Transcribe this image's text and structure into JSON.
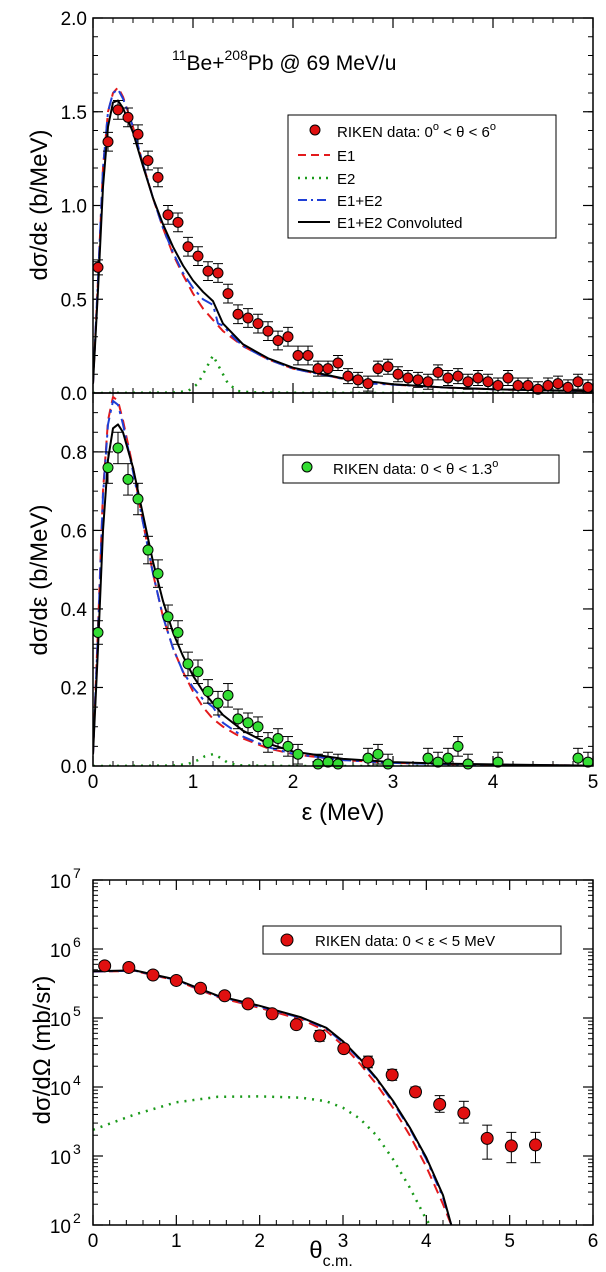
{
  "colors": {
    "e1": "#e31a1c",
    "e2": "#1a9a1a",
    "e1e2": "#1f3fd6",
    "conv": "#000000",
    "riken_red": "#e01010",
    "riken_green": "#33dd33"
  },
  "chart_data": [
    {
      "type": "scatter",
      "title": "¹¹Be+²⁰⁸Pb @ 69 MeV/u",
      "title_parts": {
        "m1": "11",
        "a": "Be+",
        "m2": "208",
        "b": "Pb @ 69 MeV/u"
      },
      "ylabel": "dσ/dε (b/MeV)",
      "xlim": [
        0,
        5
      ],
      "ylim": [
        0,
        2.0
      ],
      "x_ticks": [
        "0",
        "1",
        "2",
        "3",
        "4",
        "5"
      ],
      "y_ticks": [
        "0.0",
        "0.5",
        "1.0",
        "1.5",
        "2.0"
      ],
      "legend": {
        "data": "RIKEN data: 0° < θ < 6°",
        "data_parts": {
          "a": "RIKEN data: 0",
          "sup1": "o",
          "b": " < θ < 6",
          "sup2": "o"
        },
        "e1": "E1",
        "e2": "E2",
        "e1e2": "E1+E2",
        "conv": "E1+E2 Convoluted"
      },
      "series": [
        {
          "name": "RIKEN data: 0° < θ < 6°",
          "kind": "points",
          "x": [
            0.05,
            0.15,
            0.25,
            0.35,
            0.45,
            0.55,
            0.65,
            0.75,
            0.85,
            0.95,
            1.05,
            1.15,
            1.25,
            1.35,
            1.45,
            1.55,
            1.65,
            1.75,
            1.85,
            1.95,
            2.05,
            2.15,
            2.25,
            2.35,
            2.45,
            2.55,
            2.65,
            2.75,
            2.85,
            2.95,
            3.05,
            3.15,
            3.25,
            3.35,
            3.45,
            3.55,
            3.65,
            3.75,
            3.85,
            3.95,
            4.05,
            4.15,
            4.25,
            4.35,
            4.45,
            4.55,
            4.65,
            4.75,
            4.85,
            4.95
          ],
          "y": [
            0.67,
            1.34,
            1.51,
            1.47,
            1.38,
            1.24,
            1.15,
            0.95,
            0.91,
            0.78,
            0.73,
            0.65,
            0.64,
            0.53,
            0.42,
            0.4,
            0.37,
            0.33,
            0.28,
            0.3,
            0.2,
            0.2,
            0.13,
            0.13,
            0.16,
            0.09,
            0.07,
            0.05,
            0.13,
            0.14,
            0.1,
            0.08,
            0.07,
            0.06,
            0.11,
            0.08,
            0.09,
            0.06,
            0.08,
            0.06,
            0.04,
            0.08,
            0.04,
            0.04,
            0.02,
            0.04,
            0.05,
            0.03,
            0.06,
            0.03
          ],
          "err": [
            0.04,
            0.05,
            0.05,
            0.05,
            0.05,
            0.05,
            0.05,
            0.05,
            0.05,
            0.05,
            0.05,
            0.05,
            0.05,
            0.05,
            0.05,
            0.05,
            0.05,
            0.05,
            0.05,
            0.05,
            0.05,
            0.05,
            0.04,
            0.04,
            0.04,
            0.04,
            0.04,
            0.04,
            0.04,
            0.04,
            0.04,
            0.04,
            0.04,
            0.04,
            0.04,
            0.04,
            0.04,
            0.04,
            0.04,
            0.04,
            0.04,
            0.04,
            0.04,
            0.04,
            0.04,
            0.04,
            0.04,
            0.04,
            0.04,
            0.04
          ]
        },
        {
          "name": "E1",
          "kind": "line",
          "x": [
            0,
            0.05,
            0.1,
            0.15,
            0.2,
            0.25,
            0.3,
            0.4,
            0.5,
            0.6,
            0.7,
            0.8,
            0.9,
            1.0,
            1.1,
            1.2,
            1.3,
            1.5,
            1.75,
            2.0,
            2.5,
            3.0,
            3.5,
            4.0,
            5.0
          ],
          "y": [
            0.05,
            0.6,
            1.2,
            1.5,
            1.6,
            1.63,
            1.58,
            1.42,
            1.22,
            1.04,
            0.88,
            0.74,
            0.63,
            0.53,
            0.45,
            0.39,
            0.33,
            0.25,
            0.18,
            0.13,
            0.075,
            0.045,
            0.03,
            0.02,
            0.01
          ]
        },
        {
          "name": "E2",
          "kind": "line",
          "x": [
            0,
            0.8,
            0.95,
            1.05,
            1.12,
            1.2,
            1.28,
            1.35,
            1.45,
            1.6,
            2.0,
            3.0,
            5.0
          ],
          "y": [
            0,
            0.002,
            0.01,
            0.05,
            0.12,
            0.2,
            0.12,
            0.05,
            0.01,
            0.003,
            0.001,
            0,
            0
          ]
        },
        {
          "name": "E1+E2",
          "kind": "line",
          "x": [
            0,
            0.05,
            0.1,
            0.15,
            0.2,
            0.25,
            0.3,
            0.4,
            0.5,
            0.6,
            0.7,
            0.8,
            0.9,
            1.0,
            1.1,
            1.2,
            1.25,
            1.3,
            1.4,
            1.5,
            1.75,
            2.0,
            2.5,
            2.65,
            2.72,
            2.8,
            3.0,
            3.5,
            4.0,
            5.0
          ],
          "y": [
            0.05,
            0.6,
            1.2,
            1.5,
            1.6,
            1.62,
            1.57,
            1.42,
            1.22,
            1.04,
            0.88,
            0.75,
            0.64,
            0.56,
            0.5,
            0.47,
            0.37,
            0.36,
            0.3,
            0.25,
            0.18,
            0.13,
            0.075,
            0.09,
            0.04,
            0.05,
            0.045,
            0.03,
            0.02,
            0.01
          ]
        },
        {
          "name": "E1+E2 Convoluted",
          "kind": "line",
          "x": [
            0,
            0.05,
            0.1,
            0.15,
            0.2,
            0.25,
            0.3,
            0.4,
            0.5,
            0.6,
            0.7,
            0.8,
            0.9,
            1.0,
            1.1,
            1.2,
            1.3,
            1.5,
            1.75,
            2.0,
            2.5,
            3.0,
            3.5,
            4.0,
            5.0
          ],
          "y": [
            0.05,
            0.55,
            1.1,
            1.42,
            1.55,
            1.56,
            1.52,
            1.39,
            1.21,
            1.04,
            0.9,
            0.78,
            0.68,
            0.6,
            0.54,
            0.49,
            0.37,
            0.26,
            0.185,
            0.135,
            0.078,
            0.047,
            0.03,
            0.02,
            0.01
          ]
        }
      ]
    },
    {
      "type": "scatter",
      "ylabel": "dσ/dε (b/MeV)",
      "xlabel": "ε (MeV)",
      "xlim": [
        0,
        5
      ],
      "ylim": [
        0,
        0.95
      ],
      "x_ticks": [
        "0",
        "1",
        "2",
        "3",
        "4",
        "5"
      ],
      "y_ticks": [
        "0.0",
        "0.2",
        "0.4",
        "0.6",
        "0.8"
      ],
      "legend": {
        "data": "RIKEN data: 0 < θ < 1.3°",
        "data_parts": {
          "a": "RIKEN data: 0 < θ < 1.3",
          "sup1": "o"
        }
      },
      "series": [
        {
          "name": "RIKEN data: 0 < θ < 1.3°",
          "kind": "points",
          "x": [
            0.05,
            0.15,
            0.25,
            0.35,
            0.45,
            0.55,
            0.65,
            0.75,
            0.85,
            0.95,
            1.05,
            1.15,
            1.25,
            1.35,
            1.45,
            1.55,
            1.65,
            1.75,
            1.85,
            1.95,
            2.05,
            2.25,
            2.35,
            2.45,
            2.75,
            2.85,
            2.95,
            3.35,
            3.45,
            3.55,
            3.65,
            3.75,
            4.05,
            4.85,
            4.95
          ],
          "y": [
            0.34,
            0.76,
            0.81,
            0.73,
            0.68,
            0.55,
            0.49,
            0.38,
            0.34,
            0.26,
            0.24,
            0.19,
            0.16,
            0.18,
            0.12,
            0.11,
            0.1,
            0.06,
            0.07,
            0.05,
            0.03,
            0.005,
            0.01,
            0.005,
            0.02,
            0.03,
            0.005,
            0.02,
            0.01,
            0.02,
            0.05,
            0.005,
            0.01,
            0.02,
            0.01
          ],
          "err": [
            0.03,
            0.04,
            0.04,
            0.04,
            0.04,
            0.035,
            0.035,
            0.03,
            0.03,
            0.03,
            0.03,
            0.03,
            0.03,
            0.03,
            0.025,
            0.025,
            0.025,
            0.025,
            0.025,
            0.025,
            0.025,
            0.025,
            0.025,
            0.025,
            0.025,
            0.025,
            0.025,
            0.025,
            0.025,
            0.025,
            0.025,
            0.025,
            0.025,
            0.025,
            0.025
          ]
        },
        {
          "name": "E1",
          "kind": "line",
          "x": [
            0,
            0.05,
            0.1,
            0.15,
            0.2,
            0.25,
            0.3,
            0.4,
            0.5,
            0.6,
            0.7,
            0.8,
            0.9,
            1.0,
            1.1,
            1.2,
            1.3,
            1.5,
            1.75,
            2.0,
            2.5,
            3.0,
            3.5,
            4.0,
            5.0
          ],
          "y": [
            0.03,
            0.35,
            0.7,
            0.88,
            0.94,
            0.93,
            0.88,
            0.76,
            0.62,
            0.49,
            0.38,
            0.3,
            0.24,
            0.19,
            0.15,
            0.12,
            0.1,
            0.07,
            0.045,
            0.03,
            0.015,
            0.008,
            0.005,
            0.003,
            0.001
          ]
        },
        {
          "name": "E2",
          "kind": "line",
          "x": [
            0,
            0.8,
            0.95,
            1.05,
            1.12,
            1.2,
            1.28,
            1.35,
            1.45,
            1.6,
            2.0,
            3.0,
            5.0
          ],
          "y": [
            0,
            0.001,
            0.005,
            0.015,
            0.025,
            0.03,
            0.02,
            0.008,
            0.002,
            0.001,
            0,
            0,
            0
          ]
        },
        {
          "name": "E1+E2",
          "kind": "line",
          "x": [
            0,
            0.05,
            0.1,
            0.15,
            0.2,
            0.25,
            0.3,
            0.4,
            0.5,
            0.6,
            0.7,
            0.8,
            0.9,
            1.0,
            1.1,
            1.2,
            1.3,
            1.5,
            1.75,
            2.0,
            2.5,
            3.0,
            3.5,
            4.0,
            5.0
          ],
          "y": [
            0.03,
            0.34,
            0.69,
            0.87,
            0.93,
            0.92,
            0.87,
            0.75,
            0.62,
            0.49,
            0.38,
            0.3,
            0.24,
            0.2,
            0.17,
            0.15,
            0.11,
            0.075,
            0.048,
            0.031,
            0.015,
            0.008,
            0.005,
            0.003,
            0.001
          ]
        },
        {
          "name": "E1+E2 Convoluted",
          "kind": "line",
          "x": [
            0,
            0.05,
            0.1,
            0.15,
            0.2,
            0.25,
            0.3,
            0.4,
            0.5,
            0.6,
            0.7,
            0.8,
            0.9,
            1.0,
            1.1,
            1.2,
            1.3,
            1.5,
            1.75,
            2.0,
            2.5,
            3.0,
            3.5,
            4.0,
            5.0
          ],
          "y": [
            0.03,
            0.3,
            0.6,
            0.78,
            0.86,
            0.87,
            0.85,
            0.76,
            0.64,
            0.52,
            0.42,
            0.34,
            0.28,
            0.23,
            0.19,
            0.16,
            0.13,
            0.09,
            0.057,
            0.037,
            0.018,
            0.01,
            0.006,
            0.004,
            0.001
          ]
        }
      ]
    },
    {
      "type": "scatter",
      "ylabel": "dσ/dΩ (mb/sr)",
      "xlabel": "θc.m.",
      "xlabel_parts": {
        "main": "θ",
        "sub": "c.m."
      },
      "xlim": [
        0,
        6
      ],
      "ylim_log10": [
        2,
        7
      ],
      "yscale": "log",
      "x_ticks": [
        "0",
        "1",
        "2",
        "3",
        "4",
        "5",
        "6"
      ],
      "y_ticks": [
        {
          "base": "10",
          "exp": "2"
        },
        {
          "base": "10",
          "exp": "3"
        },
        {
          "base": "10",
          "exp": "4"
        },
        {
          "base": "10",
          "exp": "5"
        },
        {
          "base": "10",
          "exp": "6"
        },
        {
          "base": "10",
          "exp": "7"
        }
      ],
      "legend": {
        "data": "RIKEN data:  0 < ε < 5 MeV"
      },
      "series": [
        {
          "name": "RIKEN data:  0 < ε < 5 MeV",
          "kind": "points",
          "x": [
            0.14,
            0.43,
            0.72,
            1.0,
            1.29,
            1.58,
            1.86,
            2.15,
            2.44,
            2.72,
            3.01,
            3.3,
            3.59,
            3.87,
            4.16,
            4.45,
            4.73,
            5.02,
            5.31
          ],
          "y": [
            570000,
            540000,
            420000,
            350000,
            270000,
            210000,
            160000,
            115000,
            80000,
            55000,
            36000,
            23000,
            15000,
            8500,
            5600,
            4200,
            1800,
            1400,
            1450
          ],
          "err_lo": [
            540000,
            510000,
            400000,
            330000,
            255000,
            198000,
            150000,
            108000,
            74000,
            46000,
            32000,
            19000,
            12500,
            7400,
            4300,
            3000,
            900,
            800,
            800
          ],
          "err_hi": [
            600000,
            570000,
            440000,
            370000,
            285000,
            222000,
            170000,
            122000,
            87000,
            66000,
            40000,
            28000,
            18000,
            10000,
            7500,
            6200,
            2800,
            2200,
            2200
          ]
        },
        {
          "name": "E1",
          "kind": "line",
          "x": [
            0,
            0.5,
            1.0,
            1.5,
            2.0,
            2.5,
            2.8,
            3.0,
            3.2,
            3.4,
            3.6,
            3.8,
            4.0,
            4.2,
            4.3
          ],
          "y": [
            470000,
            480000,
            350000,
            200000,
            140000,
            95000,
            65000,
            40000,
            22000,
            11000,
            5000,
            2000,
            700,
            200,
            100
          ]
        },
        {
          "name": "E2",
          "kind": "line",
          "x": [
            0,
            0.5,
            1.0,
            1.5,
            2.0,
            2.5,
            2.8,
            3.0,
            3.2,
            3.4,
            3.6,
            3.8,
            4.0,
            4.1
          ],
          "y": [
            2400,
            4000,
            6000,
            7200,
            7300,
            7000,
            6200,
            5000,
            3500,
            2000,
            900,
            350,
            120,
            80
          ]
        },
        {
          "name": "E1+E2",
          "kind": "line",
          "x": [
            0,
            0.5,
            1.0,
            1.5,
            2.0,
            2.5,
            2.8,
            3.0,
            3.2,
            3.4,
            3.6,
            3.8,
            4.0,
            4.2,
            4.3
          ],
          "y": [
            472000,
            485000,
            355000,
            206000,
            146000,
            100000,
            70000,
            44000,
            25000,
            13000,
            6000,
            2500,
            900,
            250,
            100
          ]
        },
        {
          "name": "E1+E2 Convoluted",
          "kind": "line",
          "x": [
            0,
            0.5,
            1.0,
            1.5,
            2.0,
            2.5,
            2.8,
            3.0,
            3.2,
            3.4,
            3.6,
            3.8,
            4.0,
            4.2,
            4.3
          ],
          "y": [
            475000,
            490000,
            360000,
            210000,
            150000,
            102000,
            72000,
            46000,
            26000,
            13500,
            6300,
            2600,
            950,
            270,
            100
          ]
        }
      ]
    }
  ]
}
